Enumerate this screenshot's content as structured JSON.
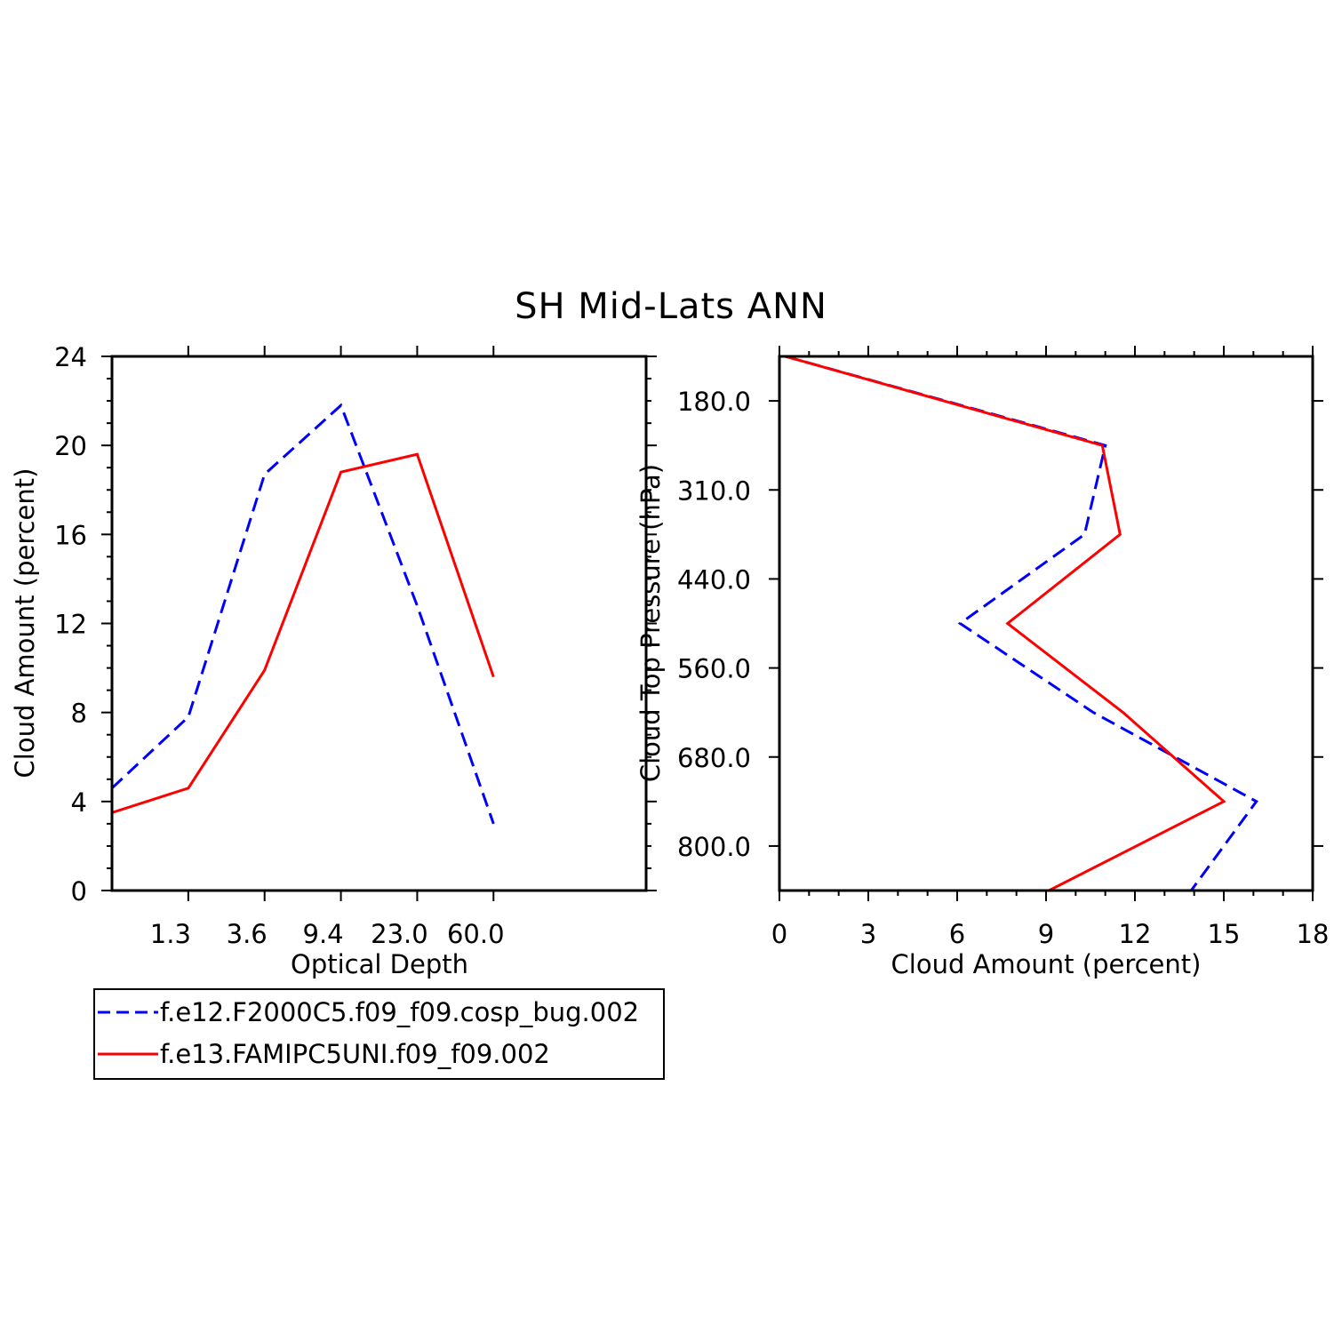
{
  "title": "SH Mid-Lats ANN",
  "colors": {
    "series1": "#0000ff",
    "series2": "#ff0000",
    "axis": "#000000"
  },
  "legend": {
    "placement": "below-left",
    "entries": [
      {
        "name": "f.e12.F2000C5.f09_f09.cosp_bug.002",
        "color": "#0000ff",
        "dash": "dashed"
      },
      {
        "name": "f.e13.FAMIPC5UNI.f09_f09.002",
        "color": "#ff0000",
        "dash": "solid"
      }
    ]
  },
  "chart_data": [
    {
      "type": "line",
      "xlabel": "Optical Depth",
      "ylabel": "Cloud Amount (percent)",
      "ylim": [
        0,
        24
      ],
      "yticks": [
        "0",
        "4",
        "8",
        "12",
        "16",
        "20",
        "24"
      ],
      "xticklabels": [
        "1.3",
        "3.6",
        "9.4",
        "23.0",
        "60.0"
      ],
      "bins": 7,
      "grid": false,
      "series": [
        {
          "name": "f.e12.F2000C5.f09_f09.cosp_bug.002",
          "color": "#0000ff",
          "dash": "dashed",
          "values": [
            4.6,
            7.8,
            18.7,
            21.8,
            12.8,
            3.0
          ]
        },
        {
          "name": "f.e13.FAMIPC5UNI.f09_f09.002",
          "color": "#ff0000",
          "dash": "solid",
          "values": [
            3.5,
            4.6,
            9.9,
            18.8,
            19.6,
            9.6
          ]
        }
      ]
    },
    {
      "type": "line",
      "xlabel": "Cloud Amount (percent)",
      "ylabel": "Cloud Top Pressure (hPa)",
      "xlim": [
        0,
        18
      ],
      "xticks": [
        "0",
        "3",
        "6",
        "9",
        "12",
        "15",
        "18"
      ],
      "yticklabels": [
        "180.0",
        "310.0",
        "440.0",
        "560.0",
        "680.0",
        "800.0"
      ],
      "grid": false,
      "series": [
        {
          "name": "f.e12.F2000C5.f09_f09.cosp_bug.002",
          "color": "#0000ff",
          "dash": "dashed",
          "values": [
            0.2,
            11.0,
            10.3,
            6.1,
            10.6,
            16.1,
            13.9
          ]
        },
        {
          "name": "f.e13.FAMIPC5UNI.f09_f09.002",
          "color": "#ff0000",
          "dash": "solid",
          "values": [
            0.2,
            10.9,
            11.5,
            7.7,
            11.6,
            15.0,
            9.1
          ]
        }
      ]
    }
  ]
}
